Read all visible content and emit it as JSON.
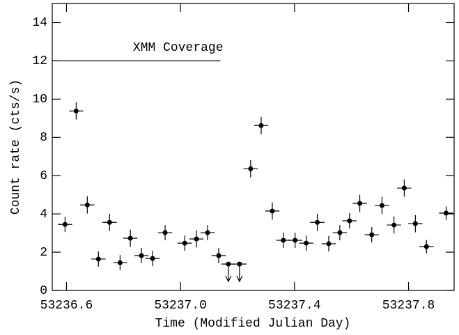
{
  "chart_data": {
    "type": "scatter",
    "xlabel": "Time (Modified Julian Day)",
    "ylabel": "Count rate (cts/s)",
    "x": [
      53236.595,
      53236.634,
      53236.673,
      53236.712,
      53236.751,
      53236.788,
      53236.824,
      53236.863,
      53236.902,
      53236.946,
      53237.015,
      53237.056,
      53237.095,
      53237.134,
      53237.168,
      53237.207,
      53237.246,
      53237.283,
      53237.322,
      53237.361,
      53237.402,
      53237.441,
      53237.48,
      53237.52,
      53237.559,
      53237.593,
      53237.629,
      53237.671,
      53237.707,
      53237.749,
      53237.785,
      53237.824,
      53237.863,
      53237.932
    ],
    "values": [
      3.45,
      9.38,
      4.47,
      1.64,
      3.56,
      1.45,
      2.73,
      1.82,
      1.67,
      3.02,
      2.47,
      2.69,
      3.02,
      1.82,
      1.38,
      1.38,
      6.36,
      8.62,
      4.15,
      2.62,
      2.62,
      2.47,
      3.56,
      2.44,
      3.02,
      3.64,
      4.55,
      2.91,
      4.44,
      3.42,
      5.35,
      3.49,
      2.29,
      4.04
    ],
    "yerr": [
      0.4,
      0.45,
      0.45,
      0.4,
      0.45,
      0.4,
      0.45,
      0.4,
      0.4,
      0.4,
      0.4,
      0.45,
      0.4,
      0.4,
      null,
      null,
      0.45,
      0.45,
      0.45,
      0.4,
      0.4,
      0.4,
      0.45,
      0.4,
      0.4,
      0.4,
      0.45,
      0.4,
      0.45,
      0.45,
      0.45,
      0.45,
      0.35,
      0.35
    ],
    "xerr": 0.025,
    "upper_limits": [
      14,
      15
    ],
    "color": "#000000",
    "xlim": [
      53236.55,
      53237.96
    ],
    "xticks": [
      53236.6,
      {
        "value": 53237,
        "label": "53237.0"
      },
      53237.4,
      53237.8
    ],
    "ylim": [
      0,
      15
    ],
    "yticks": [
      0,
      2,
      4,
      6,
      8,
      10,
      12,
      14
    ],
    "annotation": {
      "text": "XMM Coverage",
      "x_start": 53236.55,
      "x_end": 53237.14,
      "y": 12
    }
  }
}
